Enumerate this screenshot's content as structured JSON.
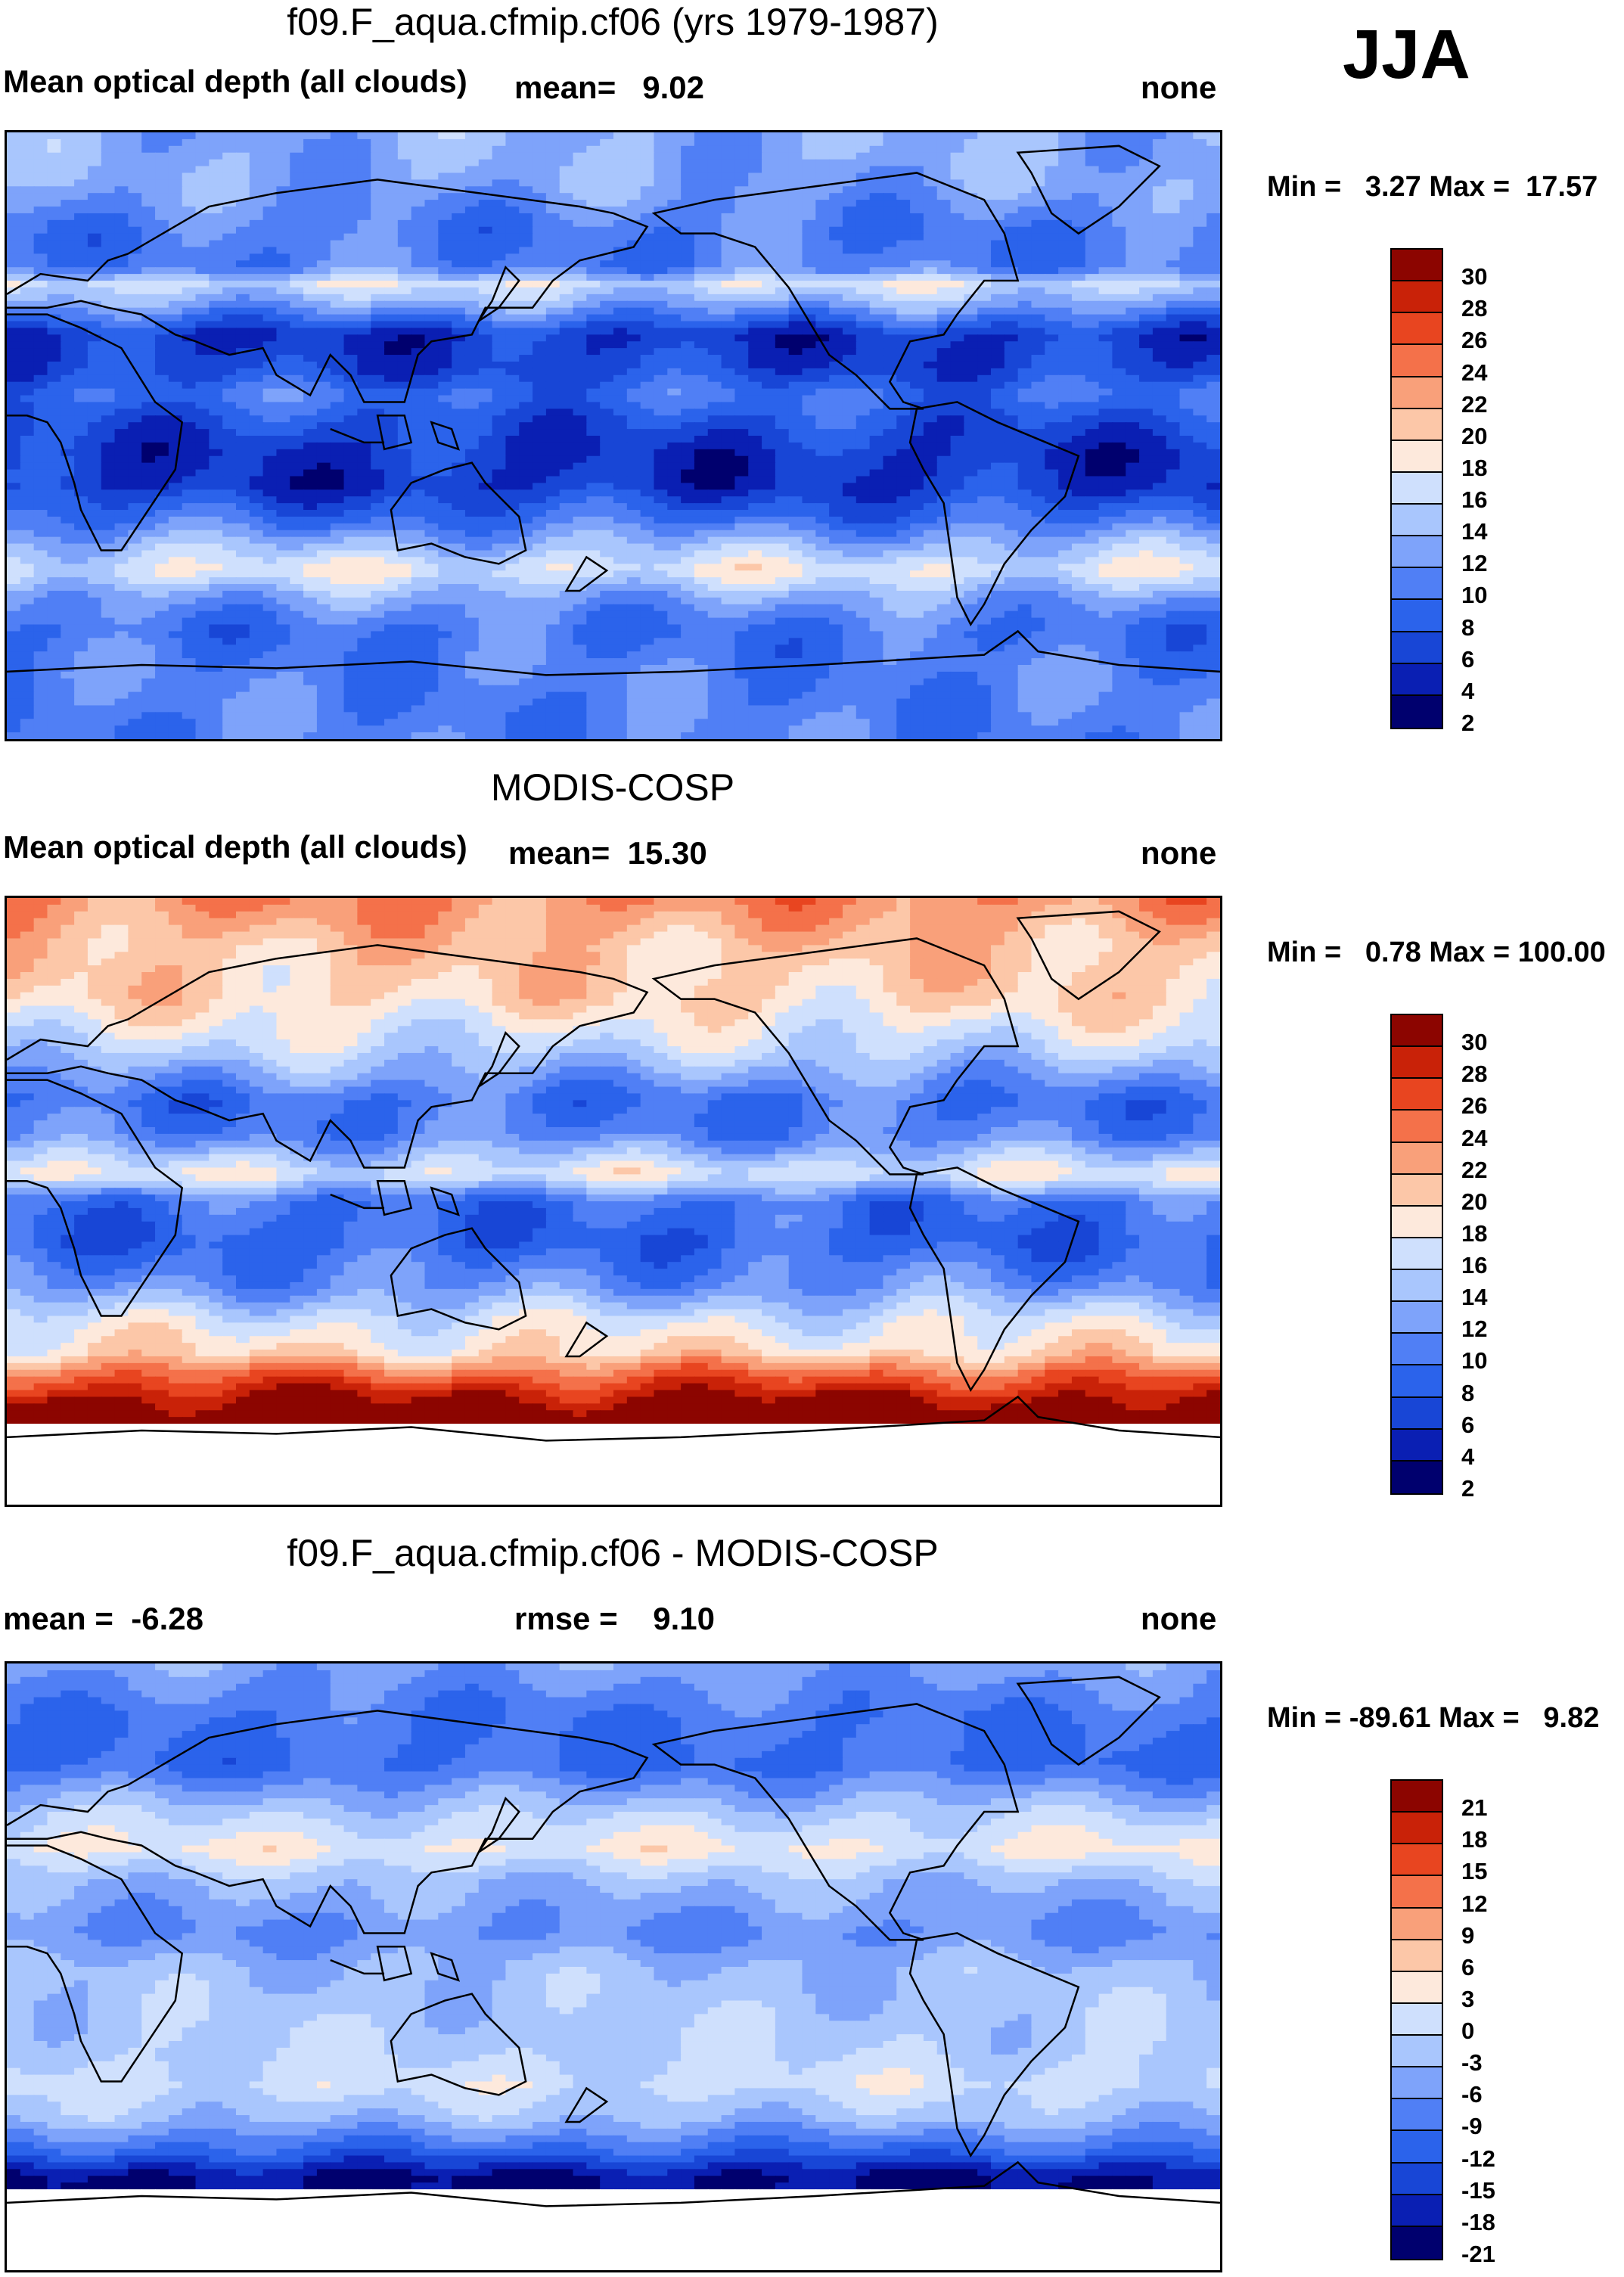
{
  "season": "JJA",
  "palette_seq": [
    "#00006e",
    "#0a1fb3",
    "#1846d6",
    "#2b63eb",
    "#507ff5",
    "#7ea3fa",
    "#a9c6fd",
    "#cfe0fd",
    "#fde9dc",
    "#fcc7a8",
    "#f9a07a",
    "#f4714a",
    "#e84520",
    "#c92208",
    "#8c0500"
  ],
  "panels": [
    {
      "title": "f09.F_aqua.cfmip.cf06 (yrs 1979-1987)",
      "left_label": "Mean optical depth (all clouds)",
      "center_label": "mean=   9.02",
      "right_label": "none",
      "minmax": "Min =   3.27 Max =  17.57",
      "colorbar_labels": [
        "30",
        "28",
        "26",
        "24",
        "22",
        "20",
        "18",
        "16",
        "14",
        "12",
        "10",
        "8",
        "6",
        "4",
        "2"
      ],
      "field": {
        "zonal_profile": [
          {
            "lat": 90,
            "value": 11.5
          },
          {
            "lat": 75,
            "value": 11
          },
          {
            "lat": 60,
            "value": 8.5
          },
          {
            "lat": 50,
            "value": 9
          },
          {
            "lat": 45,
            "value": 15
          },
          {
            "lat": 40,
            "value": 12
          },
          {
            "lat": 30,
            "value": 4
          },
          {
            "lat": 20,
            "value": 5
          },
          {
            "lat": 12,
            "value": 8
          },
          {
            "lat": 5,
            "value": 6
          },
          {
            "lat": -5,
            "value": 4
          },
          {
            "lat": -15,
            "value": 4
          },
          {
            "lat": -25,
            "value": 8
          },
          {
            "lat": -32,
            "value": 12
          },
          {
            "lat": -40,
            "value": 16
          },
          {
            "lat": -48,
            "value": 11
          },
          {
            "lat": -58,
            "value": 8
          },
          {
            "lat": -70,
            "value": 9
          },
          {
            "lat": -90,
            "value": 9
          }
        ],
        "missing_south_of": null
      }
    },
    {
      "title": "MODIS-COSP",
      "left_label": "Mean optical depth (all clouds)",
      "center_label": "mean=  15.30",
      "right_label": "none",
      "minmax": "Min =   0.78 Max = 100.00",
      "colorbar_labels": [
        "30",
        "28",
        "26",
        "24",
        "22",
        "20",
        "18",
        "16",
        "14",
        "12",
        "10",
        "8",
        "6",
        "4",
        "2"
      ],
      "field": {
        "zonal_profile": [
          {
            "lat": 90,
            "value": 22
          },
          {
            "lat": 75,
            "value": 19
          },
          {
            "lat": 60,
            "value": 18
          },
          {
            "lat": 45,
            "value": 14
          },
          {
            "lat": 30,
            "value": 8
          },
          {
            "lat": 20,
            "value": 9
          },
          {
            "lat": 8,
            "value": 16
          },
          {
            "lat": 0,
            "value": 8
          },
          {
            "lat": -12,
            "value": 7
          },
          {
            "lat": -25,
            "value": 10
          },
          {
            "lat": -35,
            "value": 15
          },
          {
            "lat": -45,
            "value": 18
          },
          {
            "lat": -52,
            "value": 24
          },
          {
            "lat": -58,
            "value": 28
          },
          {
            "lat": -64,
            "value": 31
          }
        ],
        "missing_south_of": -66
      }
    },
    {
      "title": "f09.F_aqua.cfmip.cf06 - MODIS-COSP",
      "left_label": "mean =  -6.28",
      "center_label": "rmse =    9.10",
      "right_label": "none",
      "minmax": "Min = -89.61 Max =   9.82",
      "colorbar_labels": [
        "21",
        "18",
        "15",
        "12",
        "9",
        "6",
        "3",
        "0",
        "-3",
        "-6",
        "-9",
        "-12",
        "-15",
        "-18",
        "-21"
      ],
      "field": {
        "zonal_profile": [
          {
            "lat": 90,
            "value": -6
          },
          {
            "lat": 75,
            "value": -10
          },
          {
            "lat": 60,
            "value": -11
          },
          {
            "lat": 45,
            "value": -2
          },
          {
            "lat": 35,
            "value": 2
          },
          {
            "lat": 25,
            "value": -4
          },
          {
            "lat": 10,
            "value": -8
          },
          {
            "lat": 0,
            "value": -4
          },
          {
            "lat": -12,
            "value": -3
          },
          {
            "lat": -25,
            "value": -2
          },
          {
            "lat": -35,
            "value": 0
          },
          {
            "lat": -45,
            "value": -4
          },
          {
            "lat": -55,
            "value": -12
          },
          {
            "lat": -62,
            "value": -20
          }
        ],
        "missing_south_of": -66
      }
    }
  ]
}
